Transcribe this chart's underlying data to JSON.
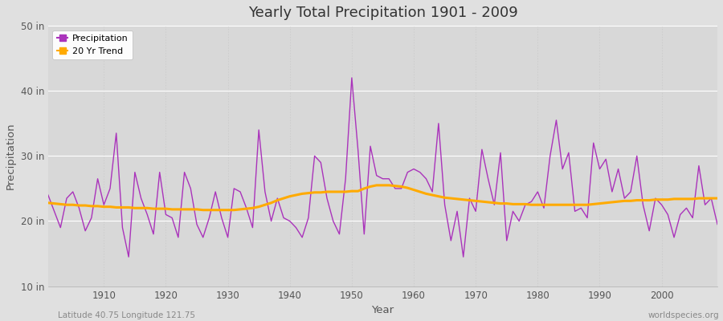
{
  "title": "Yearly Total Precipitation 1901 - 2009",
  "xlabel": "Year",
  "ylabel": "Precipitation",
  "subtitle_left": "Latitude 40.75 Longitude 121.75",
  "subtitle_right": "worldspecies.org",
  "ylim": [
    10,
    50
  ],
  "yticks": [
    10,
    20,
    30,
    40,
    50
  ],
  "ytick_labels": [
    "10 in",
    "20 in",
    "30 in",
    "40 in",
    "50 in"
  ],
  "xlim": [
    1901,
    2009
  ],
  "xticks": [
    1910,
    1920,
    1930,
    1940,
    1950,
    1960,
    1970,
    1980,
    1990,
    2000
  ],
  "precip_color": "#aa33bb",
  "trend_color": "#ffaa00",
  "bg_color": "#e0e0e0",
  "plot_bg_color": "#d8d8d8",
  "grid_color_h": "#ffffff",
  "grid_color_v": "#cccccc",
  "legend_items": [
    "Precipitation",
    "20 Yr Trend"
  ],
  "years": [
    1901,
    1902,
    1903,
    1904,
    1905,
    1906,
    1907,
    1908,
    1909,
    1910,
    1911,
    1912,
    1913,
    1914,
    1915,
    1916,
    1917,
    1918,
    1919,
    1920,
    1921,
    1922,
    1923,
    1924,
    1925,
    1926,
    1927,
    1928,
    1929,
    1930,
    1931,
    1932,
    1933,
    1934,
    1935,
    1936,
    1937,
    1938,
    1939,
    1940,
    1941,
    1942,
    1943,
    1944,
    1945,
    1946,
    1947,
    1948,
    1949,
    1950,
    1951,
    1952,
    1953,
    1954,
    1955,
    1956,
    1957,
    1958,
    1959,
    1960,
    1961,
    1962,
    1963,
    1964,
    1965,
    1966,
    1967,
    1968,
    1969,
    1970,
    1971,
    1972,
    1973,
    1974,
    1975,
    1976,
    1977,
    1978,
    1979,
    1980,
    1981,
    1982,
    1983,
    1984,
    1985,
    1986,
    1987,
    1988,
    1989,
    1990,
    1991,
    1992,
    1993,
    1994,
    1995,
    1996,
    1997,
    1998,
    1999,
    2000,
    2001,
    2002,
    2003,
    2004,
    2005,
    2006,
    2007,
    2008,
    2009
  ],
  "precipitation": [
    24.0,
    21.5,
    19.0,
    23.5,
    24.5,
    22.0,
    18.5,
    20.5,
    26.5,
    22.5,
    25.0,
    33.5,
    19.0,
    14.5,
    27.5,
    23.5,
    21.0,
    18.0,
    27.5,
    21.0,
    20.5,
    17.5,
    27.5,
    25.0,
    19.5,
    17.5,
    20.5,
    24.5,
    20.5,
    17.5,
    25.0,
    24.5,
    22.0,
    19.0,
    34.0,
    24.5,
    20.0,
    23.5,
    20.5,
    20.0,
    19.0,
    17.5,
    20.5,
    30.0,
    29.0,
    23.5,
    20.0,
    18.0,
    26.5,
    42.0,
    31.0,
    18.0,
    31.5,
    27.0,
    26.5,
    26.5,
    25.0,
    25.0,
    27.5,
    28.0,
    27.5,
    26.5,
    24.5,
    35.0,
    22.5,
    17.0,
    21.5,
    14.5,
    23.5,
    21.5,
    31.0,
    26.5,
    22.5,
    30.5,
    17.0,
    21.5,
    20.0,
    22.5,
    23.0,
    24.5,
    22.0,
    30.0,
    35.5,
    28.0,
    30.5,
    21.5,
    22.0,
    20.5,
    32.0,
    28.0,
    29.5,
    24.5,
    28.0,
    23.5,
    24.5,
    30.0,
    22.5,
    18.5,
    23.5,
    22.5,
    21.0,
    17.5,
    21.0,
    22.0,
    20.5,
    28.5,
    22.5,
    23.5,
    19.5
  ],
  "trend": [
    22.8,
    22.7,
    22.6,
    22.5,
    22.5,
    22.4,
    22.4,
    22.3,
    22.3,
    22.2,
    22.2,
    22.1,
    22.1,
    22.1,
    22.0,
    22.0,
    22.0,
    21.9,
    21.9,
    21.9,
    21.8,
    21.8,
    21.8,
    21.8,
    21.8,
    21.7,
    21.7,
    21.7,
    21.7,
    21.7,
    21.7,
    21.8,
    21.9,
    22.0,
    22.2,
    22.5,
    22.8,
    23.2,
    23.5,
    23.8,
    24.0,
    24.2,
    24.3,
    24.4,
    24.4,
    24.5,
    24.5,
    24.5,
    24.5,
    24.6,
    24.6,
    25.0,
    25.3,
    25.5,
    25.5,
    25.5,
    25.4,
    25.3,
    25.1,
    24.8,
    24.5,
    24.2,
    24.0,
    23.8,
    23.6,
    23.5,
    23.4,
    23.3,
    23.2,
    23.1,
    23.0,
    22.9,
    22.8,
    22.7,
    22.7,
    22.6,
    22.6,
    22.6,
    22.5,
    22.5,
    22.5,
    22.5,
    22.5,
    22.5,
    22.5,
    22.5,
    22.5,
    22.5,
    22.6,
    22.7,
    22.8,
    22.9,
    23.0,
    23.1,
    23.1,
    23.2,
    23.2,
    23.2,
    23.3,
    23.3,
    23.3,
    23.4,
    23.4,
    23.4,
    23.4,
    23.5,
    23.5,
    23.5,
    23.5
  ]
}
